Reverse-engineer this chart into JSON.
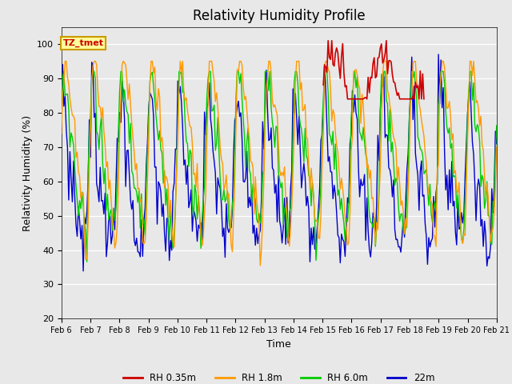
{
  "title": "Relativity Humidity Profile",
  "xlabel": "Time",
  "ylabel": "Relativity Humidity (%)",
  "ylim": [
    20,
    105
  ],
  "yticks": [
    20,
    30,
    40,
    50,
    60,
    70,
    80,
    90,
    100
  ],
  "colors": {
    "rh035": "#cc0000",
    "rh18": "#ff9900",
    "rh60": "#00cc00",
    "rh22": "#0000cc"
  },
  "legend_labels": [
    "RH 0.35m",
    "RH 1.8m",
    "RH 6.0m",
    "22m"
  ],
  "annotation_text": "TZ_tmet",
  "annotation_color": "#cc0000",
  "annotation_bg": "#ffff99",
  "annotation_border": "#cc9900",
  "background_color": "#e8e8e8",
  "n_points": 360,
  "x_start": 6,
  "x_end": 21,
  "xtick_positions": [
    6,
    7,
    8,
    9,
    10,
    11,
    12,
    13,
    14,
    15,
    16,
    17,
    18,
    19,
    20,
    21
  ],
  "xtick_labels": [
    "Feb 6",
    "Feb 7",
    "Feb 8",
    "Feb 9",
    "Feb 10",
    "Feb 11",
    "Feb 12",
    "Feb 13",
    "Feb 14",
    "Feb 15",
    "Feb 16",
    "Feb 17",
    "Feb 18",
    "Feb 19",
    "Feb 20",
    "Feb 21"
  ],
  "red_start_day": 15.0,
  "red_end_day": 18.5
}
